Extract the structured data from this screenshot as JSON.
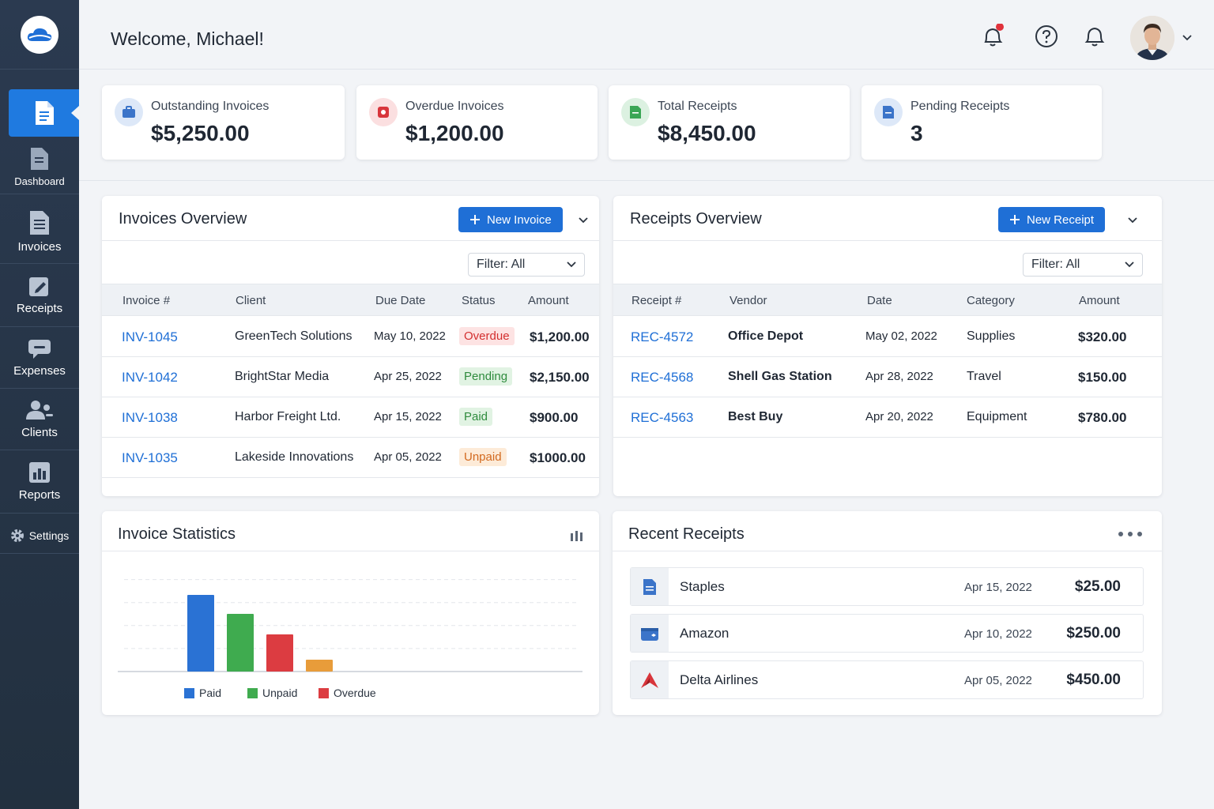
{
  "header": {
    "welcome": "Welcome, Michael!"
  },
  "sidebar": {
    "items": [
      {
        "label": "Dashboard",
        "icon": "document-icon"
      },
      {
        "label": "Invoices",
        "icon": "invoice-icon"
      },
      {
        "label": "Receipts",
        "icon": "receipt-edit-icon"
      },
      {
        "label": "Expenses",
        "icon": "expenses-icon"
      },
      {
        "label": "Clients",
        "icon": "clients-icon"
      },
      {
        "label": "Reports",
        "icon": "reports-icon"
      }
    ],
    "settings": "Settings"
  },
  "stats": [
    {
      "label": "Outstanding Invoices",
      "value": "$5,250.00",
      "color": "#3b74c9"
    },
    {
      "label": "Overdue Invoices",
      "value": "$1,200.00",
      "color": "#d8353b"
    },
    {
      "label": "Total Receipts",
      "value": "$8,450.00",
      "color": "#3aa655"
    },
    {
      "label": "Pending Receipts",
      "value": "3",
      "color": "#3b74c9"
    }
  ],
  "invoices": {
    "title": "Invoices Overview",
    "new_button": "New Invoice",
    "filter": "Filter: All",
    "columns": [
      "Invoice #",
      "Client",
      "Due Date",
      "Status",
      "Amount"
    ],
    "rows": [
      {
        "id": "INV-1045",
        "client": "GreenTech Solutions",
        "due": "May 10, 2022",
        "status": "Overdue",
        "amount": "$1,200.00"
      },
      {
        "id": "INV-1042",
        "client": "BrightStar Media",
        "due": "Apr 25, 2022",
        "status": "Pending",
        "amount": "$2,150.00"
      },
      {
        "id": "INV-1038",
        "client": "Harbor Freight Ltd.",
        "due": "Apr 15, 2022",
        "status": "Paid",
        "amount": "$900.00"
      },
      {
        "id": "INV-1035",
        "client": "Lakeside Innovations",
        "due": "Apr 05, 2022",
        "status": "Unpaid",
        "amount": "$1000.00"
      }
    ]
  },
  "receipts": {
    "title": "Receipts Overview",
    "new_button": "New Receipt",
    "filter": "Filter: All",
    "columns": [
      "Receipt #",
      "Vendor",
      "Date",
      "Category",
      "Amount"
    ],
    "rows": [
      {
        "id": "REC-4572",
        "vendor": "Office Depot",
        "date": "May 02, 2022",
        "category": "Supplies",
        "amount": "$320.00"
      },
      {
        "id": "REC-4568",
        "vendor": "Shell Gas Station",
        "date": "Apr 28, 2022",
        "category": "Travel",
        "amount": "$150.00"
      },
      {
        "id": "REC-4563",
        "vendor": "Best Buy",
        "date": "Apr 20, 2022",
        "category": "Equipment",
        "amount": "$780.00"
      }
    ]
  },
  "stats_panel": {
    "title": "Invoice Statistics"
  },
  "chart_data": {
    "type": "bar",
    "title": "",
    "categories": [
      "Paid",
      "Unpaid",
      "Overdue",
      ""
    ],
    "values": [
      97,
      73,
      47,
      15
    ],
    "colors": [
      "#2a72d4",
      "#3fab4f",
      "#dc3c41",
      "#e89c3a"
    ],
    "legend": [
      "Paid",
      "Unpaid",
      "Overdue"
    ],
    "ylim": [
      0,
      120
    ],
    "grid": true,
    "legend_position": "bottom"
  },
  "recent_receipts": {
    "title": "Recent Receipts",
    "rows": [
      {
        "name": "Staples",
        "date": "Apr 15, 2022",
        "amount": "$25.00",
        "icon": "document-icon"
      },
      {
        "name": "Amazon",
        "date": "Apr 10, 2022",
        "amount": "$250.00",
        "icon": "wallet-icon"
      },
      {
        "name": "Delta Airlines",
        "date": "Apr 05, 2022",
        "amount": "$450.00",
        "icon": "delta-logo-icon"
      }
    ]
  },
  "badge_colors": {
    "Overdue": {
      "bg": "#fde3e3",
      "fg": "#d32f2f"
    },
    "Pending": {
      "bg": "#e1f3e3",
      "fg": "#2e8b3d"
    },
    "Paid": {
      "bg": "#e1f3e3",
      "fg": "#2e8b3d"
    },
    "Unpaid": {
      "bg": "#fdebd8",
      "fg": "#d2691e"
    }
  }
}
